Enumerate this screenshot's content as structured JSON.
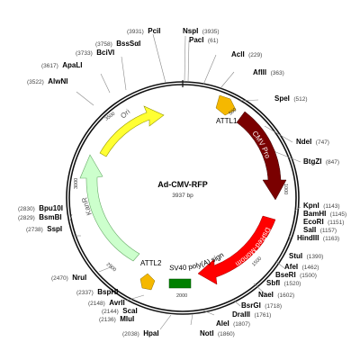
{
  "plasmid": {
    "name": "Ad-CMV-RFP",
    "size_label": "3937 bp",
    "length": 3937
  },
  "sites": [
    {
      "name": "PciI",
      "pos": "(3931)"
    },
    {
      "name": "NspI",
      "pos": "(3935)"
    },
    {
      "name": "PacI",
      "pos": "(61)"
    },
    {
      "name": "AclI",
      "pos": "(229)"
    },
    {
      "name": "AflII",
      "pos": "(363)"
    },
    {
      "name": "SpeI",
      "pos": "(512)"
    },
    {
      "name": "NdeI",
      "pos": "(747)"
    },
    {
      "name": "BtgZI",
      "pos": "(847)"
    },
    {
      "name": "KpnI",
      "pos": "(1143)"
    },
    {
      "name": "BamHI",
      "pos": "(1145)"
    },
    {
      "name": "EcoRI",
      "pos": "(1151)"
    },
    {
      "name": "SalI",
      "pos": "(1157)"
    },
    {
      "name": "HindIII",
      "pos": "(1163)"
    },
    {
      "name": "StuI",
      "pos": "(1390)"
    },
    {
      "name": "AfeI",
      "pos": "(1462)"
    },
    {
      "name": "BseRI",
      "pos": "(1500)"
    },
    {
      "name": "SbfI",
      "pos": "(1520)"
    },
    {
      "name": "NaeI",
      "pos": "(1602)"
    },
    {
      "name": "BsrGI",
      "pos": "(1718)"
    },
    {
      "name": "DraIII",
      "pos": "(1761)"
    },
    {
      "name": "AleI",
      "pos": "(1807)"
    },
    {
      "name": "NotI",
      "pos": "(1860)"
    },
    {
      "name": "HpaI",
      "pos": "(2038)"
    },
    {
      "name": "MluI",
      "pos": "(2136)"
    },
    {
      "name": "ScaI",
      "pos": "(2144)"
    },
    {
      "name": "AvrII",
      "pos": "(2148)"
    },
    {
      "name": "BspHI",
      "pos": "(2337)"
    },
    {
      "name": "NruI",
      "pos": "(2470)"
    },
    {
      "name": "SspI",
      "pos": "(2738)"
    },
    {
      "name": "BsmBI",
      "pos": "(2829)"
    },
    {
      "name": "Bpu10I",
      "pos": "(2830)"
    },
    {
      "name": "AlwNI",
      "pos": "(3522)"
    },
    {
      "name": "ApaLI",
      "pos": "(3617)"
    },
    {
      "name": "BciVI",
      "pos": "(3733)"
    },
    {
      "name": "BssSαI",
      "pos": "(3758)"
    }
  ],
  "features": [
    {
      "name": "Ori",
      "color": "#ffff33",
      "label_color": "#555555"
    },
    {
      "name": "ATTL1",
      "color": "#f5b800",
      "label_color": "#000000"
    },
    {
      "name": "CMV Promoter",
      "color": "#7a0000",
      "label_color": "#ffffff"
    },
    {
      "name": "DsRed-Monomer",
      "color": "#ff0000",
      "label_color": "#ffffff"
    },
    {
      "name": "SV40 poly(A) signal",
      "color": "#008000",
      "label_color": "#000000"
    },
    {
      "name": "ATTL2",
      "color": "#f5b800",
      "label_color": "#000000"
    },
    {
      "name": "KanR",
      "color": "#ccffcc",
      "label_color": "#555555"
    }
  ],
  "ticks": [
    "500",
    "1000",
    "1500",
    "2000",
    "2500",
    "3000",
    "3500"
  ]
}
